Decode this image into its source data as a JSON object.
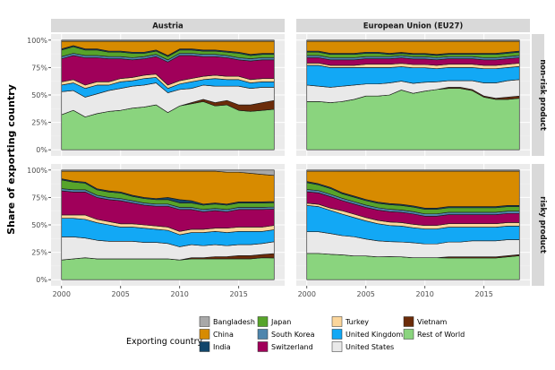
{
  "chart_data": {
    "type": "area",
    "ylabel": "Share of exporting country",
    "x": [
      2000,
      2001,
      2002,
      2003,
      2004,
      2005,
      2006,
      2007,
      2008,
      2009,
      2010,
      2011,
      2012,
      2013,
      2014,
      2015,
      2016,
      2017,
      2018
    ],
    "x_ticks": [
      "2000",
      "2005",
      "2010",
      "2015"
    ],
    "y_ticks": [
      "0%",
      "25%",
      "50%",
      "75%",
      "100%"
    ],
    "ylim": [
      0,
      1
    ],
    "legend": {
      "title": "Exporting country",
      "placement": "bottom",
      "items": [
        {
          "name": "Bangladesh",
          "color": "#a8a8a8"
        },
        {
          "name": "China",
          "color": "#d78b00"
        },
        {
          "name": "India",
          "color": "#12466b"
        },
        {
          "name": "Japan",
          "color": "#57a42a"
        },
        {
          "name": "South Korea",
          "color": "#4f86ad"
        },
        {
          "name": "Switzerland",
          "color": "#a0005a"
        },
        {
          "name": "Turkey",
          "color": "#fcd69b"
        },
        {
          "name": "United Kingdom",
          "color": "#12a8f5"
        },
        {
          "name": "United States",
          "color": "#e9e9e9"
        },
        {
          "name": "Vietnam",
          "color": "#6b2c0a"
        },
        {
          "name": "Rest of World",
          "color": "#8ad47e"
        }
      ]
    },
    "stack_order": [
      "Rest of World",
      "Vietnam",
      "United States",
      "United Kingdom",
      "Turkey",
      "Switzerland",
      "South Korea",
      "Japan",
      "India",
      "China",
      "Bangladesh"
    ],
    "columns": [
      "Austria",
      "European Union (EU27)"
    ],
    "rows": [
      "non-risk product",
      "risky product"
    ],
    "panels": [
      {
        "column": "Austria",
        "row": "non-risk product",
        "series": {
          "Rest of World": [
            0.32,
            0.36,
            0.3,
            0.33,
            0.35,
            0.36,
            0.38,
            0.39,
            0.41,
            0.34,
            0.4,
            0.42,
            0.44,
            0.4,
            0.41,
            0.36,
            0.35,
            0.36,
            0.37
          ],
          "Vietnam": [
            0,
            0,
            0,
            0,
            0,
            0,
            0,
            0,
            0,
            0,
            0,
            0.01,
            0.02,
            0.03,
            0.04,
            0.05,
            0.06,
            0.07,
            0.08
          ],
          "United States": [
            0.21,
            0.18,
            0.18,
            0.18,
            0.19,
            0.2,
            0.2,
            0.2,
            0.2,
            0.18,
            0.15,
            0.13,
            0.13,
            0.15,
            0.13,
            0.17,
            0.15,
            0.14,
            0.12
          ],
          "United Kingdom": [
            0.06,
            0.07,
            0.08,
            0.08,
            0.05,
            0.06,
            0.05,
            0.06,
            0.05,
            0.04,
            0.05,
            0.06,
            0.05,
            0.07,
            0.06,
            0.06,
            0.05,
            0.05,
            0.05
          ],
          "Turkey": [
            0.03,
            0.03,
            0.03,
            0.03,
            0.03,
            0.03,
            0.03,
            0.03,
            0.03,
            0.03,
            0.03,
            0.03,
            0.03,
            0.03,
            0.03,
            0.03,
            0.03,
            0.03,
            0.03
          ],
          "Switzerland": [
            0.21,
            0.22,
            0.25,
            0.22,
            0.21,
            0.18,
            0.16,
            0.15,
            0.16,
            0.21,
            0.23,
            0.21,
            0.18,
            0.17,
            0.17,
            0.15,
            0.17,
            0.17,
            0.17
          ],
          "South Korea": [
            0.02,
            0.02,
            0.02,
            0.02,
            0.02,
            0.02,
            0.02,
            0.02,
            0.02,
            0.02,
            0.02,
            0.02,
            0.02,
            0.02,
            0.02,
            0.02,
            0.02,
            0.02,
            0.02
          ],
          "Japan": [
            0.06,
            0.06,
            0.05,
            0.05,
            0.04,
            0.04,
            0.04,
            0.03,
            0.03,
            0.03,
            0.03,
            0.03,
            0.03,
            0.03,
            0.03,
            0.04,
            0.03,
            0.03,
            0.03
          ],
          "India": [
            0.01,
            0.01,
            0.01,
            0.01,
            0.01,
            0.01,
            0.01,
            0.01,
            0.01,
            0.01,
            0.01,
            0.01,
            0.01,
            0.01,
            0.01,
            0.01,
            0.01,
            0.01,
            0.01
          ],
          "China": [
            0.07,
            0.04,
            0.07,
            0.07,
            0.09,
            0.09,
            0.1,
            0.1,
            0.08,
            0.13,
            0.07,
            0.07,
            0.08,
            0.08,
            0.09,
            0.1,
            0.12,
            0.11,
            0.11
          ],
          "Bangladesh": [
            0.01,
            0.01,
            0.01,
            0.01,
            0.01,
            0.01,
            0.01,
            0.01,
            0.01,
            0.01,
            0.01,
            0.01,
            0.01,
            0.01,
            0.01,
            0.01,
            0.01,
            0.01,
            0.01
          ]
        }
      },
      {
        "column": "European Union (EU27)",
        "row": "non-risk product",
        "series": {
          "Rest of World": [
            0.44,
            0.44,
            0.43,
            0.44,
            0.46,
            0.49,
            0.49,
            0.5,
            0.54,
            0.51,
            0.53,
            0.55,
            0.56,
            0.56,
            0.54,
            0.48,
            0.46,
            0.46,
            0.47
          ],
          "Vietnam": [
            0,
            0,
            0,
            0,
            0,
            0,
            0,
            0,
            0,
            0,
            0,
            0,
            0.01,
            0.01,
            0.01,
            0.01,
            0.01,
            0.02,
            0.02
          ],
          "United States": [
            0.15,
            0.14,
            0.14,
            0.14,
            0.13,
            0.11,
            0.11,
            0.11,
            0.08,
            0.09,
            0.08,
            0.07,
            0.06,
            0.06,
            0.08,
            0.12,
            0.14,
            0.15,
            0.15
          ],
          "United Kingdom": [
            0.18,
            0.19,
            0.18,
            0.17,
            0.16,
            0.15,
            0.15,
            0.14,
            0.13,
            0.14,
            0.13,
            0.12,
            0.12,
            0.12,
            0.12,
            0.13,
            0.13,
            0.12,
            0.12
          ],
          "Turkey": [
            0.02,
            0.02,
            0.02,
            0.02,
            0.02,
            0.03,
            0.03,
            0.03,
            0.03,
            0.03,
            0.03,
            0.03,
            0.03,
            0.03,
            0.03,
            0.03,
            0.03,
            0.03,
            0.03
          ],
          "Switzerland": [
            0.05,
            0.05,
            0.05,
            0.05,
            0.05,
            0.05,
            0.05,
            0.05,
            0.05,
            0.05,
            0.05,
            0.05,
            0.05,
            0.05,
            0.05,
            0.05,
            0.05,
            0.05,
            0.05
          ],
          "South Korea": [
            0.02,
            0.02,
            0.02,
            0.02,
            0.02,
            0.02,
            0.02,
            0.02,
            0.02,
            0.02,
            0.02,
            0.02,
            0.02,
            0.02,
            0.02,
            0.02,
            0.02,
            0.02,
            0.02
          ],
          "Japan": [
            0.03,
            0.03,
            0.03,
            0.03,
            0.03,
            0.03,
            0.03,
            0.02,
            0.02,
            0.02,
            0.02,
            0.02,
            0.02,
            0.02,
            0.02,
            0.03,
            0.03,
            0.03,
            0.03
          ],
          "India": [
            0.01,
            0.01,
            0.01,
            0.01,
            0.01,
            0.01,
            0.01,
            0.01,
            0.01,
            0.01,
            0.01,
            0.01,
            0.01,
            0.01,
            0.01,
            0.01,
            0.01,
            0.01,
            0.01
          ],
          "China": [
            0.09,
            0.09,
            0.11,
            0.11,
            0.11,
            0.1,
            0.1,
            0.11,
            0.1,
            0.11,
            0.11,
            0.12,
            0.11,
            0.11,
            0.11,
            0.11,
            0.11,
            0.1,
            0.09
          ],
          "Bangladesh": [
            0.01,
            0.01,
            0.01,
            0.01,
            0.01,
            0.01,
            0.01,
            0.01,
            0.01,
            0.01,
            0.01,
            0.01,
            0.01,
            0.01,
            0.01,
            0.01,
            0.01,
            0.01,
            0.01
          ]
        }
      },
      {
        "column": "Austria",
        "row": "risky product",
        "series": {
          "Rest of World": [
            0.18,
            0.19,
            0.2,
            0.19,
            0.19,
            0.19,
            0.19,
            0.19,
            0.19,
            0.19,
            0.18,
            0.19,
            0.19,
            0.19,
            0.19,
            0.19,
            0.19,
            0.2,
            0.2
          ],
          "Vietnam": [
            0,
            0,
            0,
            0,
            0,
            0,
            0,
            0,
            0,
            0,
            0,
            0.01,
            0.01,
            0.02,
            0.02,
            0.03,
            0.03,
            0.03,
            0.04
          ],
          "United States": [
            0.21,
            0.2,
            0.18,
            0.17,
            0.16,
            0.16,
            0.16,
            0.15,
            0.15,
            0.14,
            0.12,
            0.12,
            0.11,
            0.11,
            0.1,
            0.1,
            0.1,
            0.1,
            0.11
          ],
          "United Kingdom": [
            0.17,
            0.17,
            0.17,
            0.16,
            0.15,
            0.13,
            0.13,
            0.13,
            0.12,
            0.12,
            0.11,
            0.11,
            0.12,
            0.12,
            0.12,
            0.12,
            0.12,
            0.11,
            0.11
          ],
          "Turkey": [
            0.03,
            0.03,
            0.04,
            0.03,
            0.03,
            0.03,
            0.03,
            0.03,
            0.03,
            0.03,
            0.03,
            0.03,
            0.03,
            0.03,
            0.04,
            0.04,
            0.04,
            0.04,
            0.04
          ],
          "Switzerland": [
            0.22,
            0.21,
            0.21,
            0.2,
            0.2,
            0.21,
            0.19,
            0.18,
            0.18,
            0.19,
            0.2,
            0.18,
            0.16,
            0.16,
            0.15,
            0.16,
            0.16,
            0.16,
            0.15
          ],
          "South Korea": [
            0.02,
            0.02,
            0.02,
            0.02,
            0.02,
            0.02,
            0.02,
            0.02,
            0.02,
            0.02,
            0.02,
            0.02,
            0.02,
            0.02,
            0.02,
            0.02,
            0.02,
            0.02,
            0.02
          ],
          "Japan": [
            0.08,
            0.07,
            0.06,
            0.05,
            0.05,
            0.05,
            0.04,
            0.04,
            0.04,
            0.04,
            0.04,
            0.04,
            0.04,
            0.04,
            0.04,
            0.04,
            0.04,
            0.04,
            0.04
          ],
          "India": [
            0.01,
            0.01,
            0.01,
            0.01,
            0.01,
            0.01,
            0.01,
            0.01,
            0.01,
            0.02,
            0.03,
            0.02,
            0.01,
            0.01,
            0.01,
            0.01,
            0.01,
            0.01,
            0.01
          ],
          "China": [
            0.07,
            0.09,
            0.1,
            0.16,
            0.18,
            0.19,
            0.22,
            0.24,
            0.25,
            0.24,
            0.26,
            0.27,
            0.3,
            0.29,
            0.29,
            0.27,
            0.26,
            0.25,
            0.24
          ],
          "Bangladesh": [
            0.01,
            0.01,
            0.01,
            0.01,
            0.01,
            0.01,
            0.01,
            0.01,
            0.01,
            0.01,
            0.01,
            0.01,
            0.01,
            0.01,
            0.02,
            0.02,
            0.03,
            0.04,
            0.05
          ]
        }
      },
      {
        "column": "European Union (EU27)",
        "row": "risky product",
        "series": {
          "Rest of World": [
            0.23,
            0.23,
            0.22,
            0.22,
            0.21,
            0.21,
            0.2,
            0.2,
            0.2,
            0.19,
            0.19,
            0.19,
            0.19,
            0.19,
            0.19,
            0.19,
            0.19,
            0.2,
            0.21
          ],
          "Vietnam": [
            0,
            0,
            0,
            0,
            0,
            0,
            0,
            0,
            0,
            0,
            0,
            0,
            0.01,
            0.01,
            0.01,
            0.01,
            0.01,
            0.01,
            0.01
          ],
          "United States": [
            0.19,
            0.19,
            0.18,
            0.17,
            0.17,
            0.15,
            0.14,
            0.13,
            0.13,
            0.13,
            0.12,
            0.12,
            0.13,
            0.13,
            0.14,
            0.14,
            0.14,
            0.14,
            0.13
          ],
          "United Kingdom": [
            0.23,
            0.22,
            0.2,
            0.19,
            0.17,
            0.16,
            0.15,
            0.14,
            0.14,
            0.13,
            0.13,
            0.13,
            0.13,
            0.13,
            0.12,
            0.12,
            0.12,
            0.12,
            0.12
          ],
          "Turkey": [
            0.02,
            0.02,
            0.02,
            0.03,
            0.03,
            0.03,
            0.03,
            0.03,
            0.03,
            0.03,
            0.03,
            0.03,
            0.03,
            0.03,
            0.03,
            0.03,
            0.03,
            0.03,
            0.03
          ],
          "Switzerland": [
            0.1,
            0.1,
            0.1,
            0.09,
            0.09,
            0.09,
            0.09,
            0.09,
            0.09,
            0.09,
            0.08,
            0.08,
            0.08,
            0.08,
            0.08,
            0.08,
            0.08,
            0.08,
            0.08
          ],
          "South Korea": [
            0.02,
            0.02,
            0.02,
            0.02,
            0.02,
            0.02,
            0.02,
            0.02,
            0.02,
            0.02,
            0.02,
            0.02,
            0.02,
            0.02,
            0.02,
            0.02,
            0.02,
            0.02,
            0.02
          ],
          "Japan": [
            0.06,
            0.05,
            0.05,
            0.04,
            0.04,
            0.04,
            0.04,
            0.04,
            0.04,
            0.04,
            0.04,
            0.04,
            0.04,
            0.04,
            0.04,
            0.04,
            0.04,
            0.04,
            0.04
          ],
          "India": [
            0.01,
            0.01,
            0.01,
            0.01,
            0.01,
            0.01,
            0.01,
            0.01,
            0.01,
            0.01,
            0.01,
            0.01,
            0.01,
            0.01,
            0.01,
            0.01,
            0.01,
            0.01,
            0.01
          ],
          "China": [
            0.09,
            0.11,
            0.14,
            0.19,
            0.22,
            0.25,
            0.27,
            0.28,
            0.29,
            0.3,
            0.32,
            0.32,
            0.31,
            0.31,
            0.31,
            0.31,
            0.31,
            0.3,
            0.3
          ],
          "Bangladesh": [
            0.01,
            0.01,
            0.01,
            0.01,
            0.01,
            0.01,
            0.01,
            0.01,
            0.01,
            0.01,
            0.01,
            0.01,
            0.01,
            0.01,
            0.01,
            0.01,
            0.01,
            0.01,
            0.01
          ]
        }
      }
    ]
  }
}
